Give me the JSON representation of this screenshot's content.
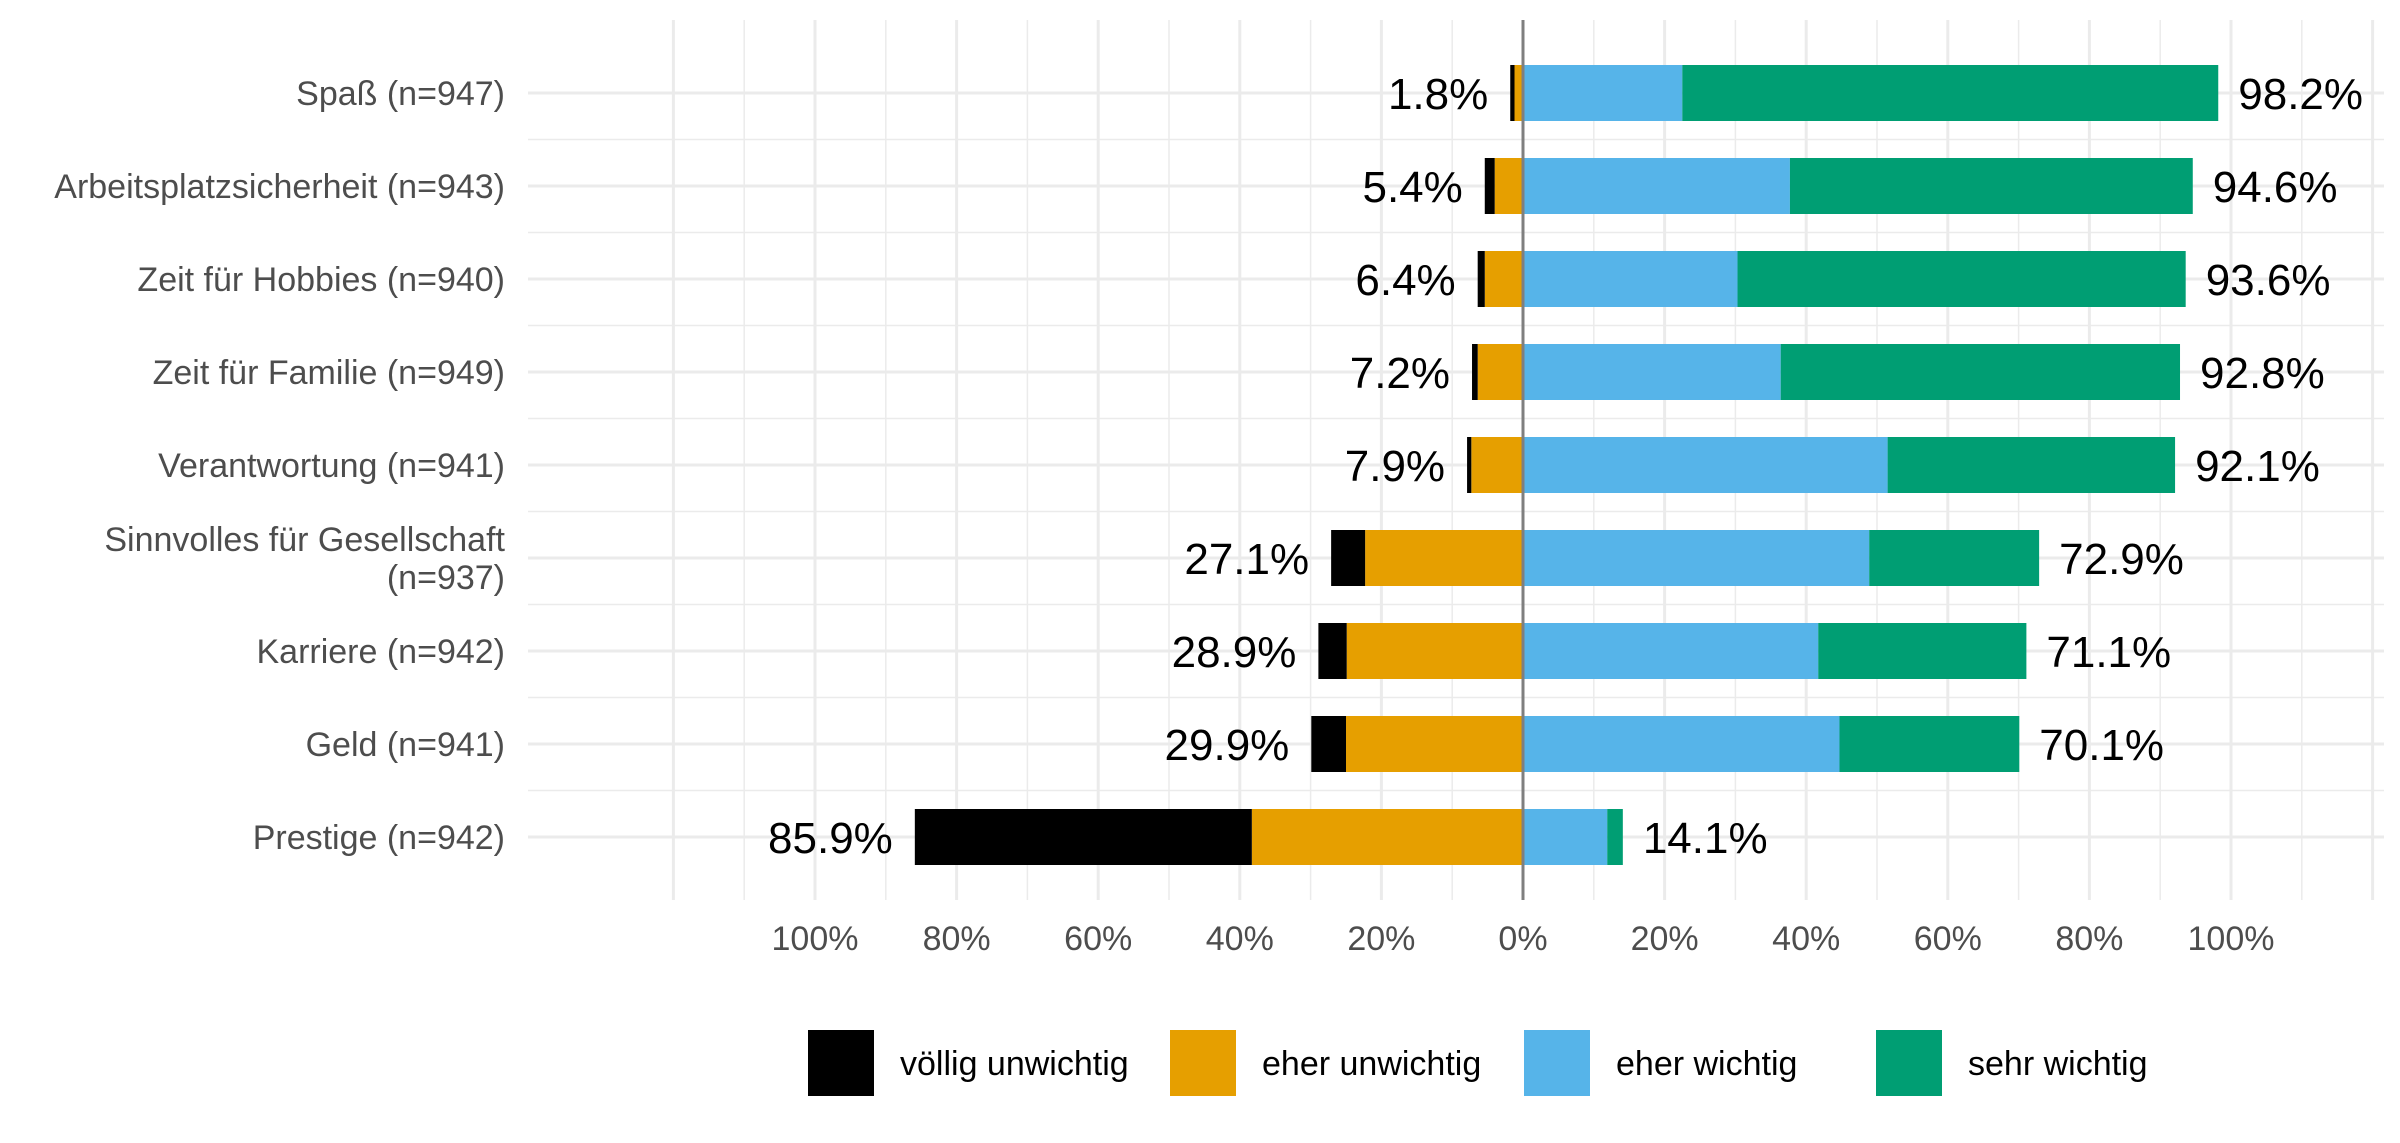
{
  "chart_data": {
    "type": "bar",
    "orientation": "horizontal",
    "stacked": "diverging",
    "categories": [
      "Spaß (n=947)",
      "Arbeitsplatzsicherheit (n=943)",
      "Zeit für Hobbies (n=940)",
      "Zeit für Familie (n=949)",
      "Verantwortung (n=941)",
      [
        "Sinnvolles für Gesellschaft",
        "(n=937)"
      ],
      "Karriere (n=942)",
      "Geld (n=941)",
      "Prestige (n=942)"
    ],
    "series": [
      {
        "name": "völlig unwichtig",
        "color": "#000000",
        "values": [
          -0.6,
          -1.4,
          -1.0,
          -0.8,
          -0.6,
          -4.8,
          -4.0,
          -4.9,
          -47.6
        ]
      },
      {
        "name": "eher unwichtig",
        "color": "#E69F00",
        "values": [
          -1.2,
          -4.0,
          -5.4,
          -6.4,
          -7.3,
          -22.3,
          -24.9,
          -25.0,
          -38.3
        ]
      },
      {
        "name": "eher wichtig",
        "color": "#56B4E9",
        "values": [
          22.5,
          37.7,
          30.3,
          36.4,
          51.5,
          48.9,
          41.7,
          44.7,
          11.9
        ]
      },
      {
        "name": "sehr wichtig",
        "color": "#009E73",
        "values": [
          75.7,
          56.9,
          63.3,
          56.4,
          40.6,
          24.0,
          29.4,
          25.4,
          2.2
        ]
      }
    ],
    "neg_labels": [
      "1.8%",
      "5.4%",
      "6.4%",
      "7.2%",
      "7.9%",
      "27.1%",
      "28.9%",
      "29.9%",
      "85.9%"
    ],
    "pos_labels": [
      "98.2%",
      "94.6%",
      "93.6%",
      "92.8%",
      "92.1%",
      "72.9%",
      "71.1%",
      "70.1%",
      "14.1%"
    ],
    "x_ticks": [
      -100,
      -80,
      -60,
      -40,
      -20,
      0,
      20,
      40,
      60,
      80,
      100
    ],
    "x_tick_labels": [
      "100%",
      "80%",
      "60%",
      "40%",
      "20%",
      "0%",
      "20%",
      "40%",
      "60%",
      "80%",
      "100%"
    ],
    "xlim": [
      -120,
      120
    ],
    "grid": true,
    "legend_position": "bottom"
  }
}
